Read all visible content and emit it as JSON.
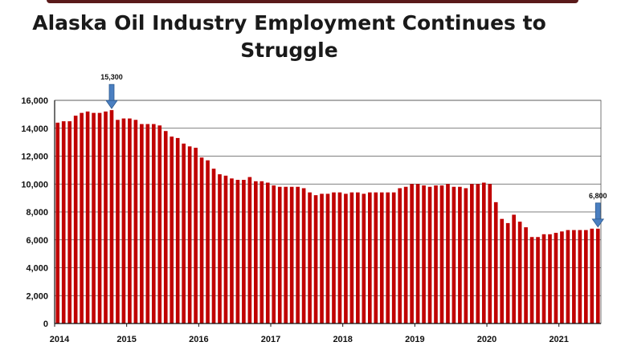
{
  "chart_data": {
    "type": "bar",
    "title": "Alaska Oil Industry Employment Continues to Struggle",
    "xlabel": "",
    "ylabel": "",
    "ylim": [
      0,
      16000
    ],
    "yticks": [
      0,
      2000,
      4000,
      6000,
      8000,
      10000,
      12000,
      14000,
      16000
    ],
    "ytick_labels": [
      "0",
      "2,000",
      "4,000",
      "6,000",
      "8,000",
      "10,000",
      "12,000",
      "14,000",
      "16,000"
    ],
    "xtick_labels": [
      "2014",
      "2015",
      "2016",
      "2017",
      "2018",
      "2019",
      "2020",
      "2021"
    ],
    "start": "2014-01",
    "grid": true,
    "bar_color": "#c00000",
    "values": [
      14400,
      14500,
      14500,
      14900,
      15100,
      15200,
      15100,
      15100,
      15200,
      15300,
      14600,
      14700,
      14700,
      14600,
      14300,
      14300,
      14300,
      14200,
      13800,
      13400,
      13300,
      12900,
      12700,
      12600,
      11900,
      11700,
      11100,
      10700,
      10600,
      10400,
      10300,
      10300,
      10500,
      10200,
      10200,
      10100,
      9900,
      9800,
      9800,
      9800,
      9800,
      9700,
      9400,
      9200,
      9300,
      9300,
      9400,
      9400,
      9300,
      9400,
      9400,
      9300,
      9400,
      9400,
      9400,
      9400,
      9400,
      9700,
      9800,
      10000,
      10000,
      9900,
      9800,
      9900,
      9900,
      10000,
      9800,
      9800,
      9700,
      10000,
      10000,
      10100,
      10000,
      8700,
      7500,
      7200,
      7800,
      7300,
      6900,
      6200,
      6200,
      6400,
      6400,
      6500,
      6600,
      6700,
      6700,
      6700,
      6700,
      6800,
      6800
    ],
    "annotations": [
      {
        "label": "15,300",
        "index": 9
      },
      {
        "label": "6,800",
        "index": 90
      }
    ]
  }
}
